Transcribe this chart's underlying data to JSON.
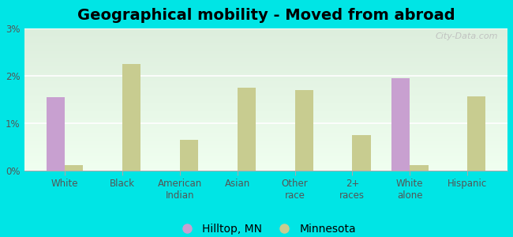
{
  "title": "Geographical mobility - Moved from abroad",
  "categories": [
    "White",
    "Black",
    "American\nIndian",
    "Asian",
    "Other\nrace",
    "2+\nraces",
    "White\nalone",
    "Hispanic"
  ],
  "hilltop_values": [
    1.55,
    0.0,
    0.0,
    0.0,
    0.0,
    0.0,
    1.95,
    0.0
  ],
  "minnesota_values": [
    0.12,
    2.25,
    0.65,
    1.75,
    1.7,
    0.75,
    0.12,
    1.57
  ],
  "hilltop_color": "#c8a0d0",
  "minnesota_color": "#c8cc90",
  "background_color": "#00e5e5",
  "plot_bg_top": "#ddeedd",
  "plot_bg_bottom": "#f0fff0",
  "ylim": [
    0,
    3.0
  ],
  "yticks": [
    0,
    1,
    2,
    3
  ],
  "ytick_labels": [
    "0%",
    "1%",
    "2%",
    "3%"
  ],
  "bar_width": 0.32,
  "title_fontsize": 14,
  "tick_fontsize": 8.5,
  "legend_fontsize": 10,
  "watermark_text": "City-Data.com"
}
